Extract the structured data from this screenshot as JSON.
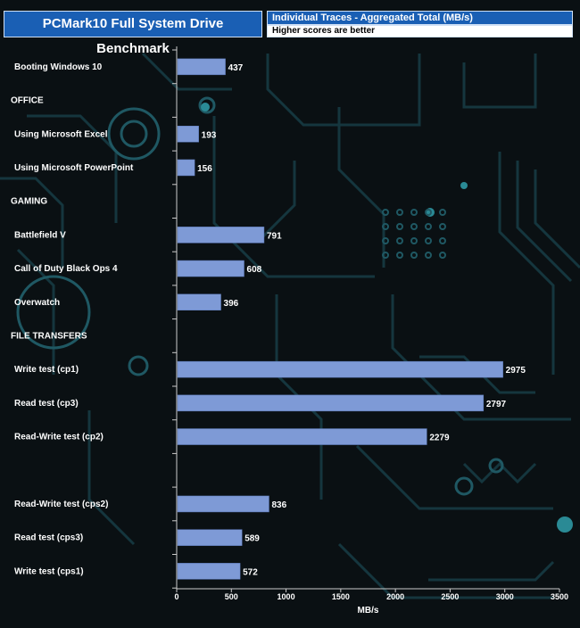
{
  "header": {
    "title": "PCMark10 Full System Drive Benchmark",
    "subtitle": "Individual Traces - Aggregated Total (MB/s)",
    "note": "Higher scores are better"
  },
  "chart_data": {
    "type": "bar",
    "orientation": "horizontal",
    "categories": [
      "Booting Windows 10",
      "OFFICE",
      "Using Microsoft Excel",
      "Using Microsoft PowerPoint",
      "GAMING",
      "Battlefield V",
      "Call of Duty Black Ops 4",
      "Overwatch",
      "FILE TRANSFERS",
      "Write test (cp1)",
      "Read test (cp3)",
      "Read-Write test (cp2)",
      "",
      "Read-Write test (cps2)",
      "Read test (cps3)",
      "Write test (cps1)"
    ],
    "values": [
      437,
      null,
      193,
      156,
      null,
      791,
      608,
      396,
      null,
      2975,
      2797,
      2279,
      null,
      836,
      589,
      572
    ],
    "data_labels": [
      "437",
      "",
      "193",
      "156",
      "",
      "791",
      "608",
      "396",
      "",
      "2975",
      "2797",
      "2279",
      "",
      "836",
      "589",
      "572"
    ],
    "xlabel": "MB/s",
    "xlim": [
      0,
      3500
    ],
    "xticks": [
      "0",
      "500",
      "1000",
      "1500",
      "2000",
      "2500",
      "3000",
      "3500"
    ],
    "bar_color": "#7e9ad6",
    "grid": false,
    "legend": "none"
  }
}
